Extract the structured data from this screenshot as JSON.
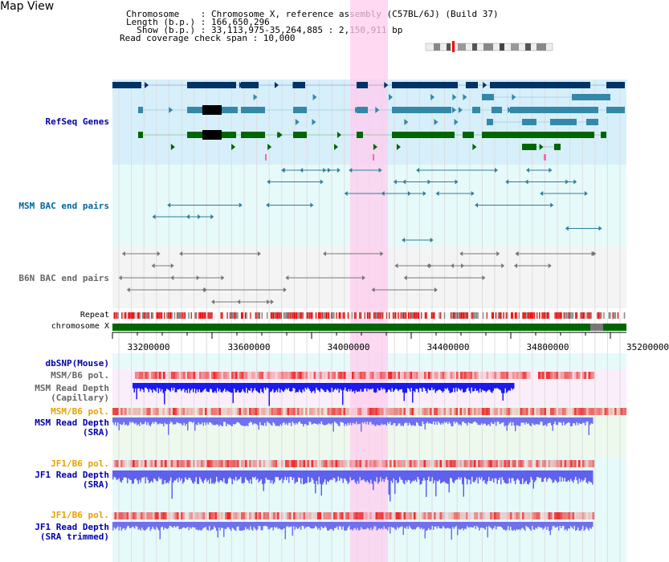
{
  "view_title": "Map View",
  "info": {
    "chromosome": "Chromosome    : Chromosome X, reference assembly (C57BL/6J) (Build 37)",
    "length": "Length (b.p.) : 166,650,296",
    "show": "  Show (b.p.) : 33,113,975-35,264,885 : 2,150,911 bp",
    "coverage": "Read coverage check span : 10,000"
  },
  "tracks": {
    "refseq": {
      "label": "RefSeq Genes",
      "color": "#0000aa"
    },
    "msm_bac": {
      "label": "MSM BAC end pairs",
      "color": "#006699"
    },
    "b6n_bac": {
      "label": "B6N BAC end pairs",
      "color": "#666666"
    },
    "repeat": {
      "label": "Repeat"
    },
    "chrom": {
      "label": "chromosome X"
    },
    "dbsnp": {
      "label": "dbSNP(Mouse)",
      "color": "#0000aa"
    },
    "msm_b6_pol_1": {
      "label": "MSM/B6 pol.",
      "color": "#666666"
    },
    "msm_depth_cap": {
      "line1": "MSM Read Depth",
      "line2": "(Capillary)",
      "color": "#666666"
    },
    "msm_b6_pol_2": {
      "label": "MSM/B6 pol.",
      "color": "#e8a000"
    },
    "msm_depth_sra": {
      "line1": "MSM Read Depth",
      "line2": "(SRA)",
      "color": "#0000aa"
    },
    "jf1_pol_1": {
      "label": "JF1/B6 pol.",
      "color": "#e8a000"
    },
    "jf1_depth_sra": {
      "line1": "JF1 Read Depth",
      "line2": "(SRA)",
      "color": "#0000aa"
    },
    "jf1_pol_2": {
      "label": "JF1/B6 pol.",
      "color": "#e8a000"
    },
    "jf1_depth_trim": {
      "line1": "JF1 Read Depth",
      "line2": "(SRA trimmed)",
      "color": "#0000aa"
    }
  },
  "axis": {
    "ticks": [
      "33200000",
      "33600000",
      "34000000",
      "34400000",
      "34800000",
      "35200000"
    ]
  },
  "colors": {
    "gene_dark": "#003366",
    "gene_mid": "#3388aa",
    "gene_green": "#006600",
    "highlight": "#ffccee",
    "refseq_bg": "#d6effa",
    "bac_bg": "#e6fafa",
    "b6n_bg": "#f4f4f4",
    "chrom_green": "#006600"
  }
}
